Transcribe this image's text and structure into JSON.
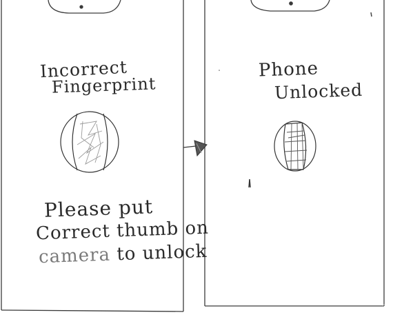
{
  "screens": {
    "left": {
      "status_line1": "Incorrect",
      "status_line2": "Fingerprint",
      "instructions": {
        "line1": "Please put",
        "line2": "Correct thumb on",
        "line3_word": "camera",
        "line3_rest": " to unlock"
      }
    },
    "right": {
      "status_line1": "Phone",
      "status_line2": "Unlocked"
    }
  },
  "colors": {
    "ink": "#2a2a2a",
    "faint_ink": "#7a7a7a",
    "paper": "#ffffff"
  },
  "icons": {
    "left_scanner": "fingerprint-scanner-icon",
    "right_scanner": "fingerprint-scanner-icon",
    "transition": "arrow-right-icon"
  }
}
